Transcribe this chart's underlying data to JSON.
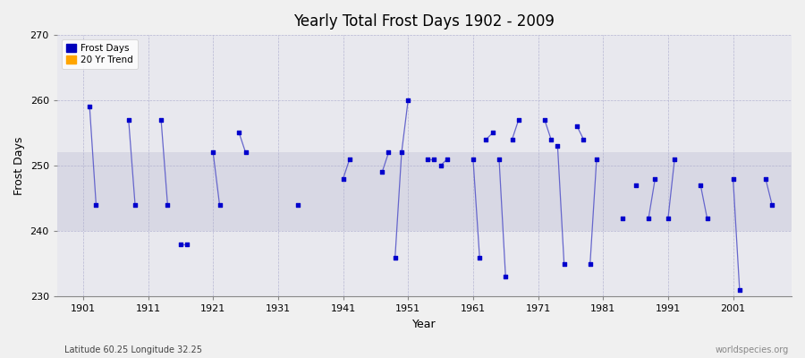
{
  "title": "Yearly Total Frost Days 1902 - 2009",
  "ylabel": "Frost Days",
  "xlabel": "Year",
  "ylim": [
    230,
    270
  ],
  "yticks": [
    230,
    240,
    250,
    260,
    270
  ],
  "xlim": [
    1897,
    2010
  ],
  "xticks": [
    1901,
    1911,
    1921,
    1931,
    1941,
    1951,
    1961,
    1971,
    1981,
    1991,
    2001
  ],
  "footnote_left": "Latitude 60.25 Longitude 32.25",
  "footnote_right": "worldspecies.org",
  "legend_labels": [
    "Frost Days",
    "20 Yr Trend"
  ],
  "legend_colors": [
    "#0000bb",
    "#ffa500"
  ],
  "bg_outer": "#f0f0f0",
  "bg_inner": "#e8e8ee",
  "bg_band_color": "#d8d8e4",
  "bg_band_lo": 240,
  "bg_band_hi": 252,
  "line_color": "#6666cc",
  "dot_color": "#0000cc",
  "dot_size": 8,
  "groups": [
    {
      "years": [
        1902,
        1903
      ],
      "values": [
        259,
        244
      ]
    },
    {
      "years": [
        1908,
        1909
      ],
      "values": [
        257,
        244
      ]
    },
    {
      "years": [
        1913,
        1914
      ],
      "values": [
        257,
        244
      ]
    },
    {
      "years": [
        1916,
        1917
      ],
      "values": [
        238,
        238
      ]
    },
    {
      "years": [
        1921,
        1922
      ],
      "values": [
        252,
        244
      ]
    },
    {
      "years": [
        1925,
        1926
      ],
      "values": [
        255,
        252
      ]
    },
    {
      "years": [
        1934
      ],
      "values": [
        244
      ]
    },
    {
      "years": [
        1941,
        1942
      ],
      "values": [
        248,
        251
      ]
    },
    {
      "years": [
        1947,
        1948
      ],
      "values": [
        249,
        252
      ]
    },
    {
      "years": [
        1949,
        1950,
        1951
      ],
      "values": [
        236,
        252,
        260
      ]
    },
    {
      "years": [
        1954,
        1955
      ],
      "values": [
        251,
        251
      ]
    },
    {
      "years": [
        1956,
        1957
      ],
      "values": [
        250,
        251
      ]
    },
    {
      "years": [
        1961,
        1962
      ],
      "values": [
        251,
        236
      ]
    },
    {
      "years": [
        1963,
        1964
      ],
      "values": [
        254,
        255
      ]
    },
    {
      "years": [
        1965,
        1966
      ],
      "values": [
        251,
        233
      ]
    },
    {
      "years": [
        1967,
        1968
      ],
      "values": [
        254,
        257
      ]
    },
    {
      "years": [
        1972,
        1973
      ],
      "values": [
        257,
        254
      ]
    },
    {
      "years": [
        1974,
        1975
      ],
      "values": [
        253,
        235
      ]
    },
    {
      "years": [
        1977,
        1978
      ],
      "values": [
        256,
        254
      ]
    },
    {
      "years": [
        1979,
        1980
      ],
      "values": [
        235,
        251
      ]
    },
    {
      "years": [
        1984
      ],
      "values": [
        242
      ]
    },
    {
      "years": [
        1986
      ],
      "values": [
        247
      ]
    },
    {
      "years": [
        1988,
        1989
      ],
      "values": [
        242,
        248
      ]
    },
    {
      "years": [
        1991,
        1992
      ],
      "values": [
        242,
        251
      ]
    },
    {
      "years": [
        1996,
        1997
      ],
      "values": [
        247,
        242
      ]
    },
    {
      "years": [
        2001,
        2002
      ],
      "values": [
        248,
        231
      ]
    },
    {
      "years": [
        2006,
        2007
      ],
      "values": [
        248,
        244
      ]
    }
  ]
}
